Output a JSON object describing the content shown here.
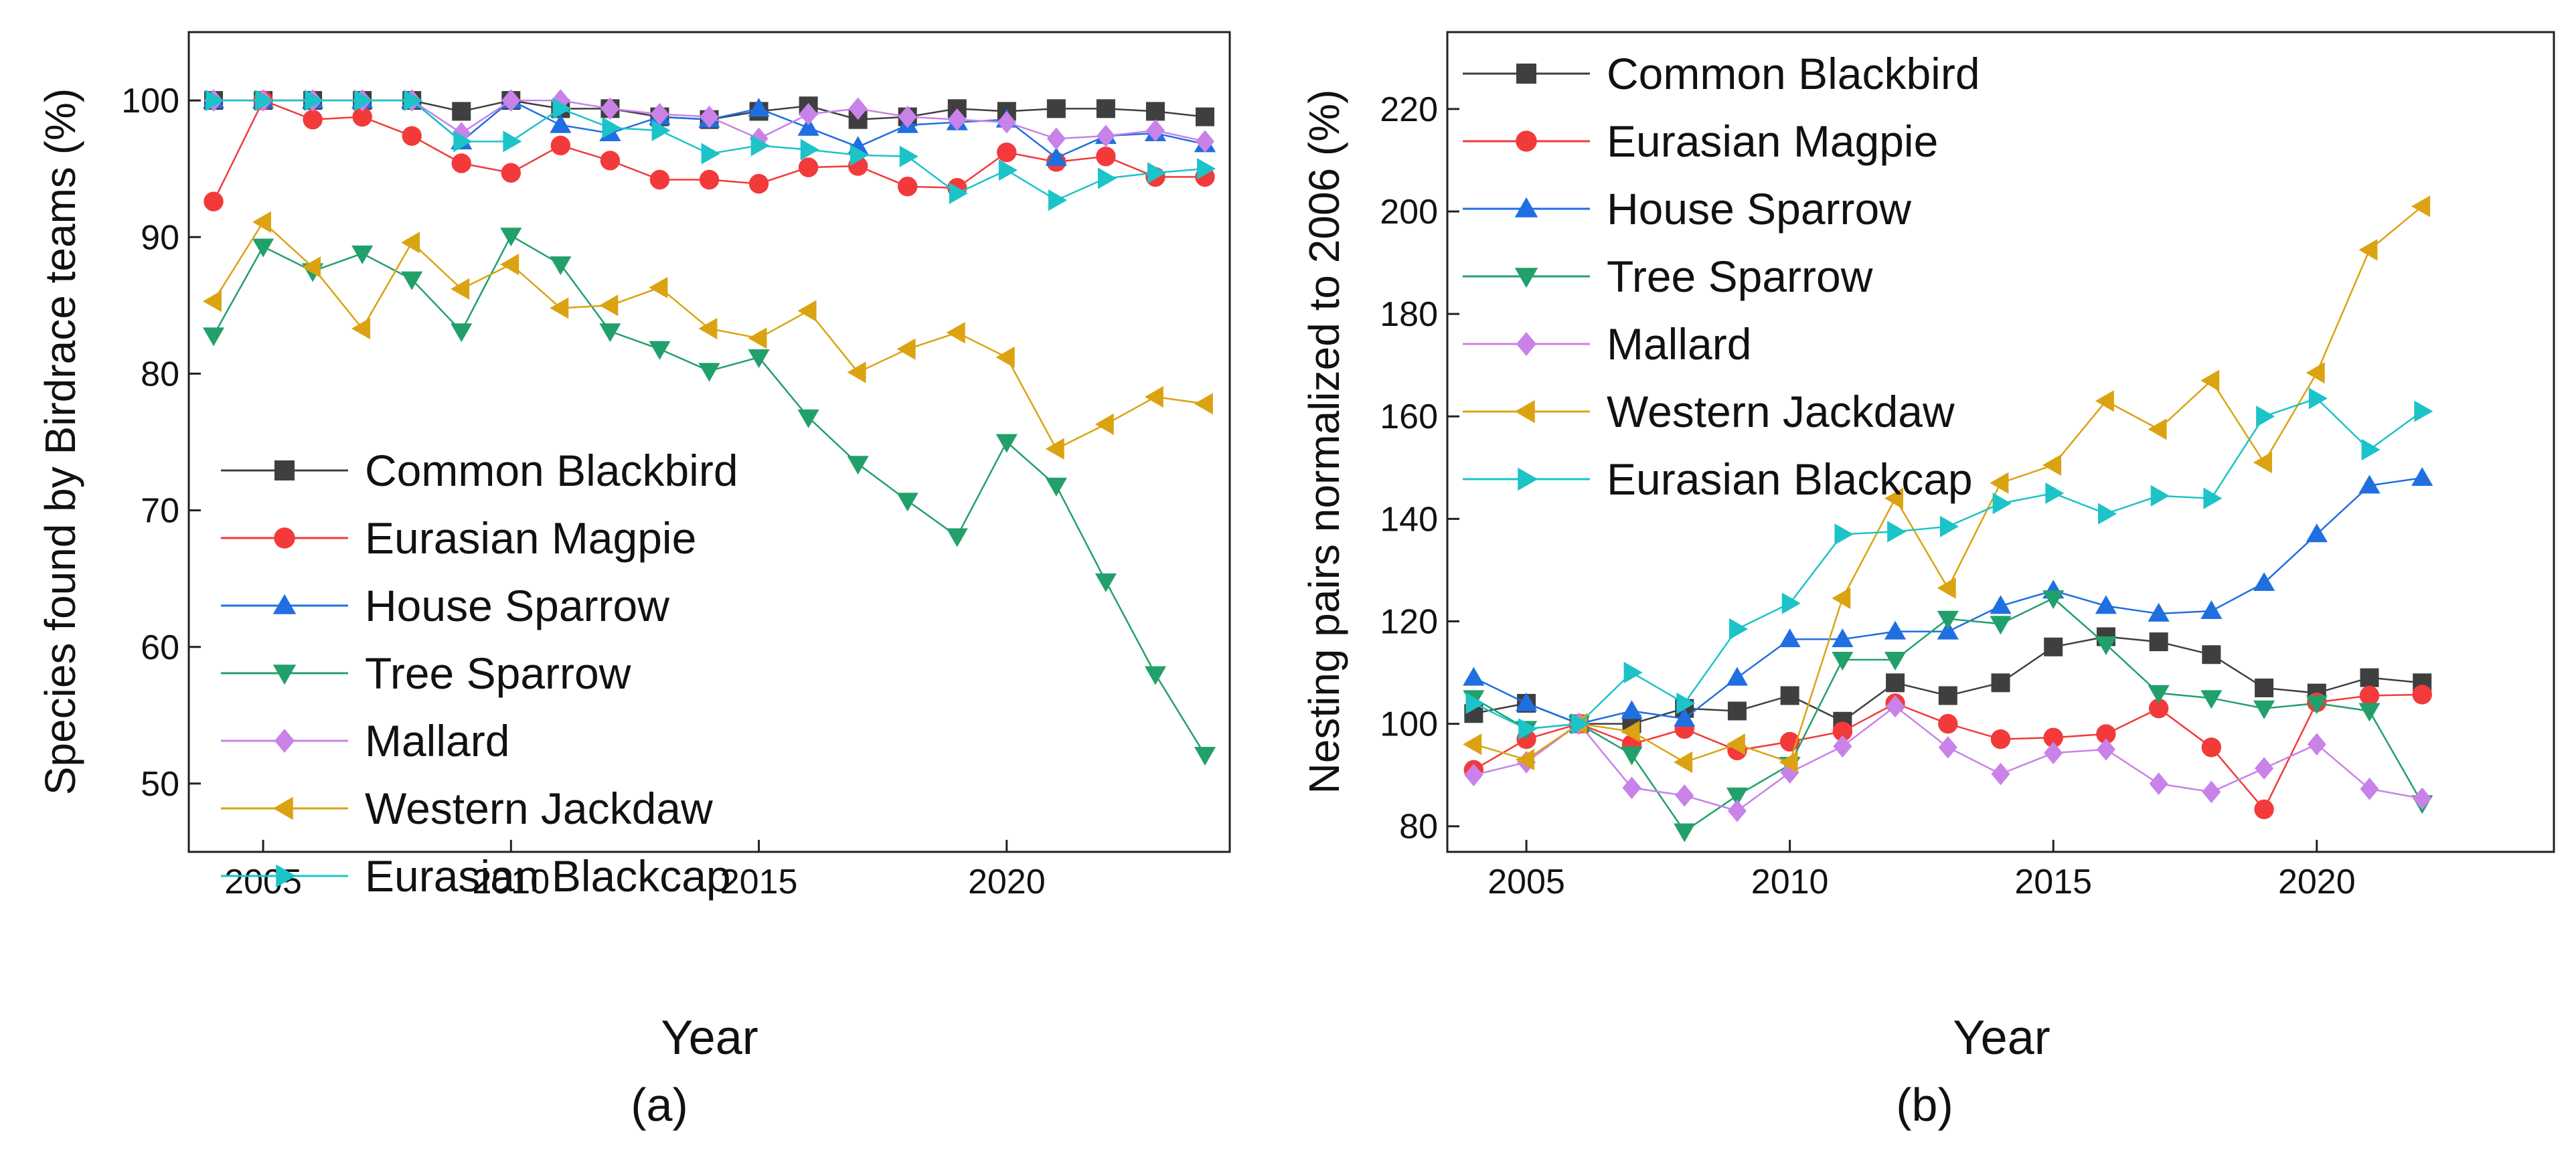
{
  "chart_data": [
    {
      "type": "line",
      "caption": "(a)",
      "xlabel": "Year",
      "ylabel": "Species found by Birdrace teams (%)",
      "xlim": [
        2003.5,
        2024.5
      ],
      "ylim": [
        45,
        105
      ],
      "xticks": [
        "2005",
        "2010",
        "2015",
        "2020"
      ],
      "yticks": [
        "50",
        "60",
        "70",
        "80",
        "90",
        "100"
      ],
      "legend_position": "lower-left",
      "x": [
        2004,
        2005,
        2006,
        2007,
        2008,
        2009,
        2010,
        2011,
        2012,
        2013,
        2014,
        2015,
        2016,
        2017,
        2018,
        2019,
        2020,
        2021,
        2022,
        2023,
        2024
      ],
      "series": [
        {
          "name": "Common Blackbird",
          "color": "#3f3f3f",
          "marker": "square",
          "values": [
            100,
            100,
            100,
            100,
            100,
            99.2,
            100,
            99.4,
            99.4,
            98.8,
            98.6,
            99.2,
            99.6,
            98.6,
            98.8,
            99.4,
            99.2,
            99.4,
            99.4,
            99.2,
            98.8
          ]
        },
        {
          "name": "Eurasian Magpie",
          "color": "#f23a3a",
          "marker": "circle",
          "values": [
            92.6,
            100,
            98.6,
            98.8,
            97.4,
            95.4,
            94.7,
            96.7,
            95.6,
            94.2,
            94.2,
            93.9,
            95.1,
            95.2,
            93.7,
            93.6,
            96.2,
            95.5,
            95.9,
            94.4,
            94.4
          ]
        },
        {
          "name": "House Sparrow",
          "color": "#1f6fe0",
          "marker": "triangle-up",
          "values": [
            100,
            100,
            100,
            100,
            100,
            97,
            100,
            98.2,
            97.6,
            98.8,
            98.6,
            99.4,
            98,
            96.6,
            98.2,
            98.4,
            98.6,
            95.8,
            97.4,
            97.6,
            96.8
          ]
        },
        {
          "name": "Tree Sparrow",
          "color": "#22a06b",
          "marker": "triangle-down",
          "values": [
            82.8,
            89.3,
            87.5,
            88.8,
            86.9,
            83.1,
            90.1,
            88,
            83.1,
            81.8,
            80.2,
            81.2,
            76.8,
            73.4,
            70.7,
            68.1,
            75,
            71.8,
            64.8,
            58,
            52.1
          ]
        },
        {
          "name": "Mallard",
          "color": "#c882e8",
          "marker": "diamond",
          "values": [
            100,
            100,
            100,
            100,
            100,
            97.6,
            100,
            100,
            99.4,
            99,
            98.8,
            97.2,
            99,
            99.4,
            98.8,
            98.6,
            98.4,
            97.2,
            97.4,
            97.8,
            97
          ]
        },
        {
          "name": "Western Jackdaw",
          "color": "#dba312",
          "marker": "triangle-left",
          "values": [
            85.3,
            91.1,
            87.8,
            83.3,
            89.6,
            86.2,
            88,
            84.8,
            85,
            86.3,
            83.3,
            82.6,
            84.6,
            80.1,
            81.8,
            83,
            81.2,
            74.5,
            76.3,
            78.3,
            77.8
          ]
        },
        {
          "name": "Eurasian Blackcap",
          "color": "#1cc3c8",
          "marker": "triangle-right",
          "values": [
            100,
            100,
            100,
            100,
            100,
            97,
            97,
            99.4,
            98,
            97.8,
            96.1,
            96.7,
            96.4,
            96,
            95.9,
            93.2,
            94.9,
            92.7,
            94.3,
            94.7,
            95
          ]
        }
      ]
    },
    {
      "type": "line",
      "caption": "(b)",
      "xlabel": "Year",
      "ylabel": "Nesting pairs normalized to 2006 (%)",
      "xlim": [
        2003.5,
        2024.5
      ],
      "ylim": [
        75,
        235
      ],
      "xticks": [
        "2005",
        "2010",
        "2015",
        "2020"
      ],
      "yticks": [
        "80",
        "100",
        "120",
        "140",
        "160",
        "180",
        "200",
        "220"
      ],
      "legend_position": "top-left",
      "x": [
        2004,
        2005,
        2006,
        2007,
        2008,
        2009,
        2010,
        2011,
        2012,
        2013,
        2014,
        2015,
        2016,
        2017,
        2018,
        2019,
        2020,
        2021,
        2022
      ],
      "series": [
        {
          "name": "Common Blackbird",
          "color": "#3f3f3f",
          "marker": "square",
          "values": [
            102,
            104,
            100,
            100,
            103,
            102.5,
            105.5,
            100.5,
            108,
            105.5,
            108,
            115,
            117,
            116,
            113.5,
            107,
            106,
            109,
            108
          ]
        },
        {
          "name": "Eurasian Magpie",
          "color": "#f23a3a",
          "marker": "circle",
          "values": [
            91,
            97,
            100,
            96,
            99,
            94.8,
            96.5,
            98.5,
            104,
            100,
            97,
            97.3,
            98,
            103,
            95.4,
            83.3,
            104.2,
            105.5,
            105.7
          ]
        },
        {
          "name": "House Sparrow",
          "color": "#1f6fe0",
          "marker": "triangle-up",
          "values": [
            109,
            104,
            100,
            102.5,
            101,
            109,
            116.5,
            116.5,
            118,
            118,
            123,
            126,
            123,
            121.5,
            122,
            127.5,
            137,
            146.5,
            148
          ]
        },
        {
          "name": "Tree Sparrow",
          "color": "#22a06b",
          "marker": "triangle-down",
          "values": [
            105,
            99,
            100,
            94,
            79,
            86,
            92,
            112.5,
            112.5,
            120.5,
            119.5,
            124.5,
            115.5,
            106,
            105,
            103,
            104,
            102.5,
            84.5
          ]
        },
        {
          "name": "Mallard",
          "color": "#c882e8",
          "marker": "diamond",
          "values": [
            90,
            92.5,
            100,
            87.5,
            86,
            83,
            90.5,
            95.6,
            103.4,
            95.4,
            90.2,
            94.3,
            95,
            88.3,
            86.7,
            91.3,
            96,
            87.3,
            85.4
          ]
        },
        {
          "name": "Western Jackdaw",
          "color": "#dba312",
          "marker": "triangle-left",
          "values": [
            96,
            93,
            100,
            98.5,
            92.5,
            96,
            92.5,
            124.5,
            144,
            126.5,
            147,
            150.5,
            163,
            157.5,
            167,
            151,
            168.5,
            192.5,
            201
          ]
        },
        {
          "name": "Eurasian Blackcap",
          "color": "#1cc3c8",
          "marker": "triangle-right",
          "values": [
            104,
            99,
            100,
            110,
            104,
            118.5,
            123.5,
            137,
            137.5,
            138.5,
            143,
            145,
            141,
            144.5,
            144,
            160,
            163.5,
            153.5,
            161
          ]
        }
      ]
    }
  ]
}
